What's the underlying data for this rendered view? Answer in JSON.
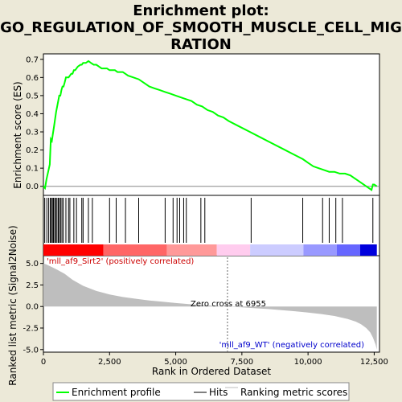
{
  "chart_data": {
    "type": "line",
    "title_lines": [
      "Enrichment plot:",
      "GO_REGULATION_OF_SMOOTH_MUSCLE_CELL_MIG",
      "RATION"
    ],
    "es_ylabel": "Enrichment score (ES)",
    "metric_ylabel": "Ranked list metric (Signal2Noise)",
    "xlabel": "Rank in Ordered Dataset",
    "xlim": [
      0,
      12700
    ],
    "es_ylim": [
      -0.05,
      0.73
    ],
    "metric_ylim": [
      -5.3,
      5.9
    ],
    "x_ticks": [
      "0",
      "2,500",
      "5,000",
      "7,500",
      "10,000",
      "12,500"
    ],
    "x_tick_values": [
      0,
      2500,
      5000,
      7500,
      10000,
      12500
    ],
    "es_ticks": [
      "0.0",
      "0.1",
      "0.2",
      "0.3",
      "0.4",
      "0.5",
      "0.6",
      "0.7"
    ],
    "es_tick_values": [
      0,
      0.1,
      0.2,
      0.3,
      0.4,
      0.5,
      0.6,
      0.7
    ],
    "metric_ticks": [
      "5.0",
      "2.5",
      "0.0",
      "-2.5",
      "-5.0"
    ],
    "metric_tick_values": [
      5,
      2.5,
      0,
      -2.5,
      -5
    ],
    "positive_label": "'mll_af9_Sirt2' (positively correlated)",
    "negative_label": "'mll_af9_WT' (negatively correlated)",
    "zero_cross_label": "Zero cross at 6955",
    "zero_cross": 6955,
    "series": [
      {
        "name": "Enrichment profile",
        "color": "#00ff00",
        "x": [
          0,
          60,
          120,
          180,
          240,
          280,
          320,
          360,
          400,
          440,
          480,
          520,
          560,
          600,
          640,
          680,
          720,
          760,
          800,
          850,
          900,
          950,
          1000,
          1050,
          1100,
          1150,
          1200,
          1300,
          1400,
          1450,
          1500,
          1600,
          1700,
          1800,
          1900,
          2000,
          2100,
          2200,
          2300,
          2400,
          2500,
          2600,
          2700,
          2800,
          2900,
          3000,
          3100,
          3200,
          3400,
          3600,
          3800,
          4000,
          4200,
          4400,
          4600,
          4800,
          5000,
          5200,
          5400,
          5600,
          5800,
          6000,
          6200,
          6400,
          6600,
          6800,
          7000,
          7400,
          7800,
          8200,
          8600,
          9000,
          9400,
          9800,
          10000,
          10200,
          10400,
          10600,
          10800,
          11000,
          11200,
          11400,
          11600,
          11800,
          12000,
          12200,
          12400,
          12450,
          12500,
          12600
        ],
        "y": [
          0.0,
          -0.01,
          0.04,
          0.08,
          0.12,
          0.26,
          0.25,
          0.29,
          0.33,
          0.37,
          0.41,
          0.44,
          0.47,
          0.5,
          0.5,
          0.53,
          0.55,
          0.55,
          0.57,
          0.6,
          0.6,
          0.6,
          0.61,
          0.62,
          0.62,
          0.64,
          0.64,
          0.66,
          0.67,
          0.67,
          0.68,
          0.68,
          0.69,
          0.68,
          0.67,
          0.67,
          0.66,
          0.65,
          0.65,
          0.65,
          0.64,
          0.64,
          0.64,
          0.63,
          0.63,
          0.63,
          0.62,
          0.61,
          0.6,
          0.59,
          0.57,
          0.55,
          0.54,
          0.53,
          0.52,
          0.51,
          0.5,
          0.49,
          0.48,
          0.47,
          0.45,
          0.44,
          0.42,
          0.41,
          0.39,
          0.38,
          0.36,
          0.33,
          0.3,
          0.27,
          0.24,
          0.21,
          0.18,
          0.15,
          0.13,
          0.11,
          0.1,
          0.09,
          0.08,
          0.08,
          0.07,
          0.07,
          0.06,
          0.04,
          0.02,
          0.0,
          -0.02,
          0.01,
          0.01,
          0.0
        ]
      },
      {
        "name": "Hits",
        "color": "#000000",
        "x": [
          50,
          130,
          200,
          260,
          300,
          340,
          380,
          430,
          460,
          510,
          560,
          600,
          650,
          700,
          750,
          850,
          950,
          1000,
          1150,
          1250,
          1450,
          1500,
          1700,
          1850,
          2500,
          2750,
          3100,
          3600,
          4600,
          4900,
          5050,
          5150,
          5300,
          5400,
          5950,
          6100,
          7850,
          9800,
          10550,
          10800,
          11050,
          11300,
          12450
        ]
      },
      {
        "name": "Ranking metric scores",
        "color": "#bebebe",
        "x": [
          0,
          100,
          300,
          500,
          800,
          1100,
          1500,
          2000,
          2500,
          3000,
          3500,
          4000,
          4500,
          5000,
          5500,
          6000,
          6500,
          6955,
          7500,
          8000,
          8500,
          9000,
          9500,
          10000,
          10500,
          11000,
          11500,
          11800,
          12000,
          12200,
          12350,
          12450,
          12550,
          12600
        ],
        "y": [
          5.0,
          4.9,
          4.6,
          4.3,
          3.8,
          3.1,
          2.4,
          1.8,
          1.4,
          1.1,
          0.9,
          0.7,
          0.55,
          0.4,
          0.28,
          0.18,
          0.08,
          0.0,
          -0.1,
          -0.2,
          -0.3,
          -0.42,
          -0.55,
          -0.7,
          -0.88,
          -1.1,
          -1.45,
          -1.75,
          -2.05,
          -2.5,
          -3.0,
          -3.6,
          -4.4,
          -5.0
        ]
      }
    ],
    "legend": [
      "Enrichment profile",
      "Hits",
      "Ranking metric scores"
    ],
    "legend_placement": "bottom",
    "bar_colors": [
      "#ff0000",
      "#ff6666",
      "#ff9999",
      "#ffccee",
      "#ccccff",
      "#9999ff",
      "#6666ff",
      "#0000dd"
    ],
    "grid": false
  }
}
